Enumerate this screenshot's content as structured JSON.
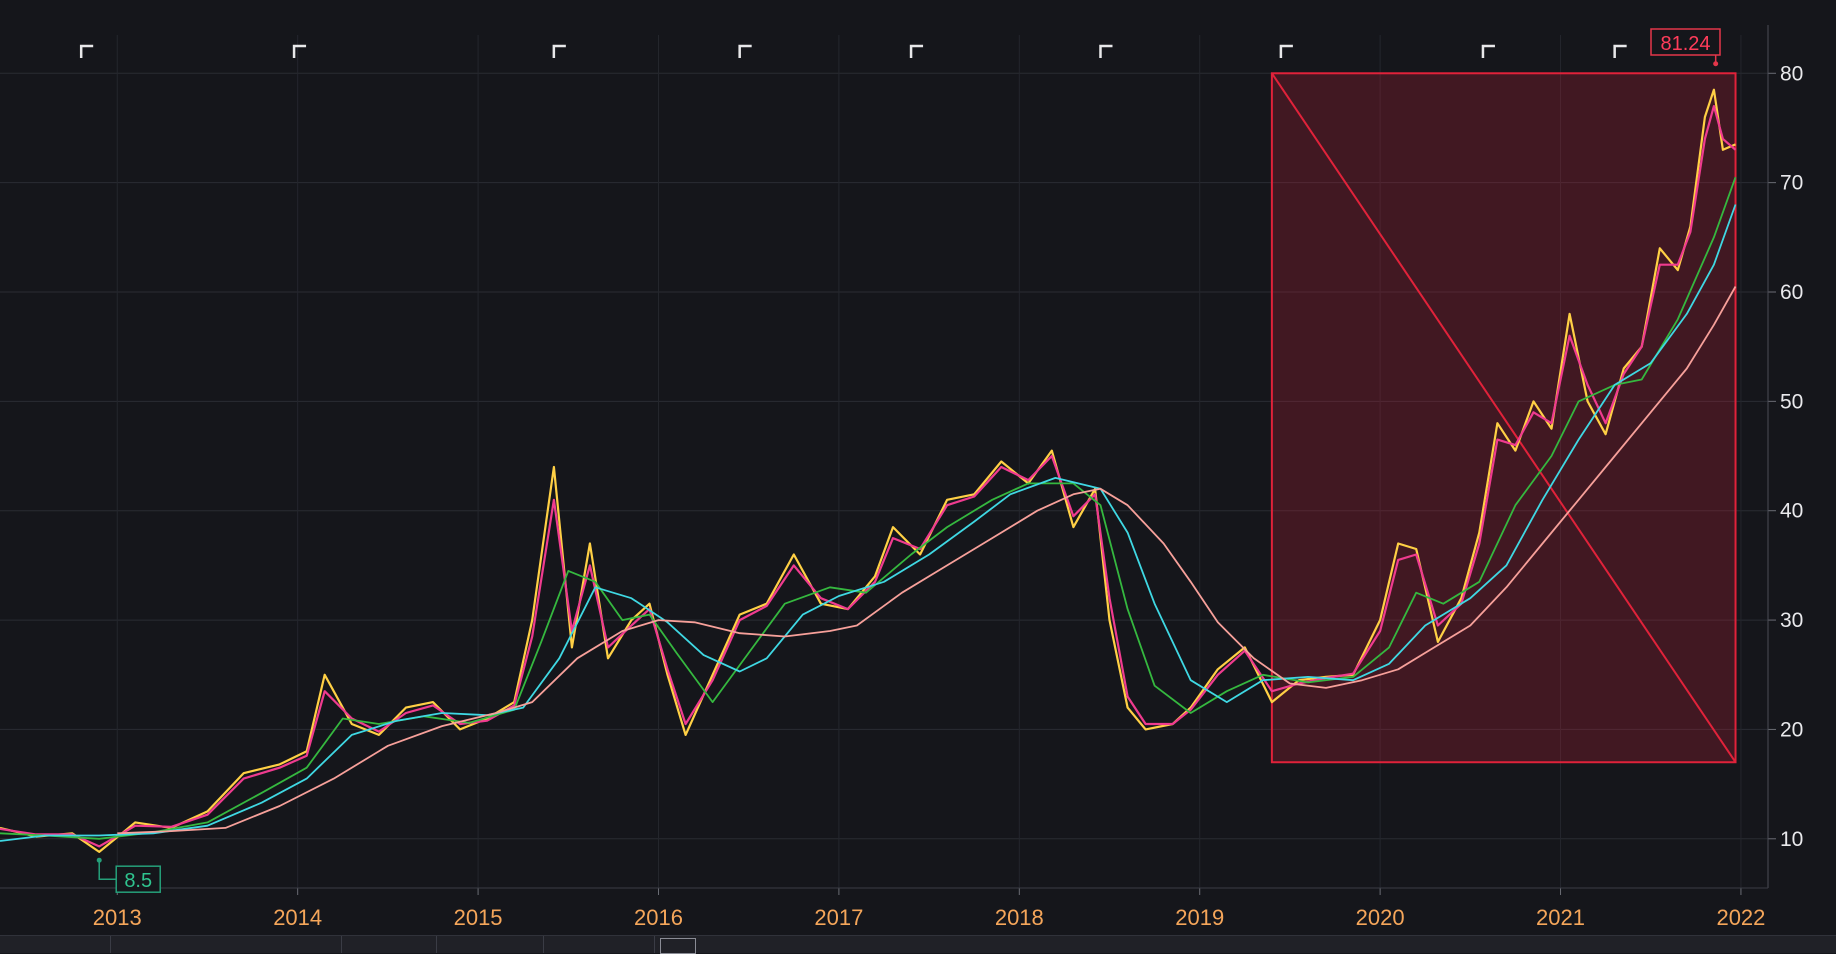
{
  "chart_data": {
    "type": "line",
    "title": "",
    "xlabel": "",
    "ylabel": "",
    "x_ticks": [
      "2013",
      "2014",
      "2015",
      "2016",
      "2017",
      "2018",
      "2019",
      "2020",
      "2021",
      "2022"
    ],
    "y_ticks": [
      10,
      20,
      30,
      40,
      50,
      60,
      70,
      80
    ],
    "ylim": [
      5.5,
      83.5
    ],
    "xlim": [
      2012.35,
      2022.15
    ],
    "grid": true,
    "y_axis_side": "right",
    "series": [
      {
        "name": "",
        "color": "#ffd045",
        "points": [
          [
            2012.35,
            11.0
          ],
          [
            2012.55,
            10.2
          ],
          [
            2012.75,
            10.5
          ],
          [
            2012.9,
            8.8
          ],
          [
            2013.1,
            11.5
          ],
          [
            2013.3,
            11.0
          ],
          [
            2013.5,
            12.5
          ],
          [
            2013.7,
            16.0
          ],
          [
            2013.9,
            16.8
          ],
          [
            2014.05,
            18.0
          ],
          [
            2014.15,
            25.0
          ],
          [
            2014.3,
            20.5
          ],
          [
            2014.45,
            19.5
          ],
          [
            2014.6,
            22.0
          ],
          [
            2014.75,
            22.5
          ],
          [
            2014.9,
            20.0
          ],
          [
            2015.05,
            21.0
          ],
          [
            2015.2,
            22.5
          ],
          [
            2015.3,
            30.0
          ],
          [
            2015.42,
            44.0
          ],
          [
            2015.52,
            27.5
          ],
          [
            2015.62,
            37.0
          ],
          [
            2015.72,
            26.5
          ],
          [
            2015.85,
            30.0
          ],
          [
            2015.95,
            31.5
          ],
          [
            2016.05,
            25.0
          ],
          [
            2016.15,
            19.5
          ],
          [
            2016.3,
            25.0
          ],
          [
            2016.45,
            30.5
          ],
          [
            2016.6,
            31.5
          ],
          [
            2016.75,
            36.0
          ],
          [
            2016.9,
            31.5
          ],
          [
            2017.05,
            31.0
          ],
          [
            2017.2,
            34.0
          ],
          [
            2017.3,
            38.5
          ],
          [
            2017.45,
            36.0
          ],
          [
            2017.6,
            41.0
          ],
          [
            2017.75,
            41.5
          ],
          [
            2017.9,
            44.5
          ],
          [
            2018.05,
            42.5
          ],
          [
            2018.18,
            45.5
          ],
          [
            2018.3,
            38.5
          ],
          [
            2018.42,
            42.0
          ],
          [
            2018.5,
            30.0
          ],
          [
            2018.6,
            22.0
          ],
          [
            2018.7,
            20.0
          ],
          [
            2018.85,
            20.5
          ],
          [
            2018.95,
            22.0
          ],
          [
            2019.1,
            25.5
          ],
          [
            2019.25,
            27.5
          ],
          [
            2019.4,
            22.5
          ],
          [
            2019.55,
            24.5
          ],
          [
            2019.7,
            24.8
          ],
          [
            2019.85,
            25.0
          ],
          [
            2020.0,
            30.0
          ],
          [
            2020.1,
            37.0
          ],
          [
            2020.2,
            36.5
          ],
          [
            2020.32,
            28.0
          ],
          [
            2020.45,
            32.0
          ],
          [
            2020.55,
            38.0
          ],
          [
            2020.65,
            48.0
          ],
          [
            2020.75,
            45.5
          ],
          [
            2020.85,
            50.0
          ],
          [
            2020.95,
            47.5
          ],
          [
            2021.05,
            58.0
          ],
          [
            2021.15,
            50.0
          ],
          [
            2021.25,
            47.0
          ],
          [
            2021.35,
            53.0
          ],
          [
            2021.45,
            55.0
          ],
          [
            2021.55,
            64.0
          ],
          [
            2021.65,
            62.0
          ],
          [
            2021.72,
            66.0
          ],
          [
            2021.8,
            76.0
          ],
          [
            2021.85,
            78.5
          ],
          [
            2021.9,
            73.0
          ],
          [
            2021.97,
            73.5
          ]
        ]
      },
      {
        "name": "",
        "color": "#ef3b8f",
        "points": [
          [
            2012.35,
            10.9
          ],
          [
            2012.55,
            10.4
          ],
          [
            2012.75,
            10.4
          ],
          [
            2012.9,
            9.3
          ],
          [
            2013.1,
            11.2
          ],
          [
            2013.3,
            11.1
          ],
          [
            2013.5,
            12.2
          ],
          [
            2013.7,
            15.5
          ],
          [
            2013.9,
            16.5
          ],
          [
            2014.05,
            17.6
          ],
          [
            2014.15,
            23.5
          ],
          [
            2014.3,
            21.0
          ],
          [
            2014.45,
            19.8
          ],
          [
            2014.6,
            21.5
          ],
          [
            2014.75,
            22.2
          ],
          [
            2014.9,
            20.5
          ],
          [
            2015.05,
            20.8
          ],
          [
            2015.2,
            22.2
          ],
          [
            2015.3,
            28.5
          ],
          [
            2015.42,
            41.0
          ],
          [
            2015.52,
            29.0
          ],
          [
            2015.62,
            35.0
          ],
          [
            2015.72,
            27.5
          ],
          [
            2015.85,
            29.5
          ],
          [
            2015.95,
            31.0
          ],
          [
            2016.05,
            25.5
          ],
          [
            2016.15,
            20.5
          ],
          [
            2016.3,
            24.5
          ],
          [
            2016.45,
            30.0
          ],
          [
            2016.6,
            31.3
          ],
          [
            2016.75,
            35.0
          ],
          [
            2016.9,
            32.0
          ],
          [
            2017.05,
            31.0
          ],
          [
            2017.2,
            33.5
          ],
          [
            2017.3,
            37.5
          ],
          [
            2017.45,
            36.5
          ],
          [
            2017.6,
            40.5
          ],
          [
            2017.75,
            41.3
          ],
          [
            2017.9,
            44.0
          ],
          [
            2018.05,
            42.8
          ],
          [
            2018.18,
            45.0
          ],
          [
            2018.3,
            39.5
          ],
          [
            2018.42,
            41.5
          ],
          [
            2018.5,
            32.0
          ],
          [
            2018.6,
            23.0
          ],
          [
            2018.7,
            20.5
          ],
          [
            2018.85,
            20.5
          ],
          [
            2018.95,
            21.8
          ],
          [
            2019.1,
            25.0
          ],
          [
            2019.25,
            27.2
          ],
          [
            2019.4,
            23.5
          ],
          [
            2019.55,
            24.2
          ],
          [
            2019.7,
            24.7
          ],
          [
            2019.85,
            25.1
          ],
          [
            2020.0,
            29.0
          ],
          [
            2020.1,
            35.5
          ],
          [
            2020.2,
            36.0
          ],
          [
            2020.32,
            29.5
          ],
          [
            2020.45,
            31.5
          ],
          [
            2020.55,
            37.0
          ],
          [
            2020.65,
            46.5
          ],
          [
            2020.75,
            46.0
          ],
          [
            2020.85,
            49.0
          ],
          [
            2020.95,
            48.0
          ],
          [
            2021.05,
            56.0
          ],
          [
            2021.15,
            51.5
          ],
          [
            2021.25,
            48.0
          ],
          [
            2021.35,
            52.5
          ],
          [
            2021.45,
            55.0
          ],
          [
            2021.55,
            62.5
          ],
          [
            2021.65,
            62.5
          ],
          [
            2021.72,
            65.5
          ],
          [
            2021.8,
            74.0
          ],
          [
            2021.85,
            77.0
          ],
          [
            2021.9,
            74.0
          ],
          [
            2021.97,
            73.0
          ]
        ]
      },
      {
        "name": "",
        "color": "#35b83f",
        "points": [
          [
            2012.35,
            10.5
          ],
          [
            2012.6,
            10.3
          ],
          [
            2012.9,
            10.0
          ],
          [
            2013.2,
            10.6
          ],
          [
            2013.5,
            11.5
          ],
          [
            2013.8,
            14.2
          ],
          [
            2014.05,
            16.5
          ],
          [
            2014.25,
            21.0
          ],
          [
            2014.45,
            20.5
          ],
          [
            2014.7,
            21.2
          ],
          [
            2014.95,
            20.6
          ],
          [
            2015.2,
            21.8
          ],
          [
            2015.35,
            28.0
          ],
          [
            2015.5,
            34.5
          ],
          [
            2015.65,
            33.5
          ],
          [
            2015.8,
            30.0
          ],
          [
            2015.95,
            30.5
          ],
          [
            2016.1,
            27.0
          ],
          [
            2016.3,
            22.5
          ],
          [
            2016.5,
            27.0
          ],
          [
            2016.7,
            31.5
          ],
          [
            2016.95,
            33.0
          ],
          [
            2017.15,
            32.5
          ],
          [
            2017.4,
            36.0
          ],
          [
            2017.6,
            38.5
          ],
          [
            2017.85,
            41.0
          ],
          [
            2018.05,
            42.5
          ],
          [
            2018.3,
            42.5
          ],
          [
            2018.45,
            40.5
          ],
          [
            2018.6,
            31.0
          ],
          [
            2018.75,
            24.0
          ],
          [
            2018.95,
            21.5
          ],
          [
            2019.15,
            23.5
          ],
          [
            2019.35,
            25.0
          ],
          [
            2019.6,
            24.3
          ],
          [
            2019.85,
            24.8
          ],
          [
            2020.05,
            27.5
          ],
          [
            2020.2,
            32.5
          ],
          [
            2020.35,
            31.5
          ],
          [
            2020.55,
            33.5
          ],
          [
            2020.75,
            40.5
          ],
          [
            2020.95,
            45.0
          ],
          [
            2021.1,
            50.0
          ],
          [
            2021.3,
            51.5
          ],
          [
            2021.45,
            52.0
          ],
          [
            2021.65,
            57.5
          ],
          [
            2021.85,
            65.0
          ],
          [
            2021.97,
            70.5
          ]
        ]
      },
      {
        "name": "",
        "color": "#3fd8e3",
        "points": [
          [
            2012.35,
            9.8
          ],
          [
            2012.6,
            10.3
          ],
          [
            2012.9,
            10.3
          ],
          [
            2013.2,
            10.5
          ],
          [
            2013.5,
            11.2
          ],
          [
            2013.8,
            13.3
          ],
          [
            2014.05,
            15.5
          ],
          [
            2014.3,
            19.5
          ],
          [
            2014.55,
            20.8
          ],
          [
            2014.8,
            21.5
          ],
          [
            2015.05,
            21.3
          ],
          [
            2015.25,
            22.0
          ],
          [
            2015.45,
            26.5
          ],
          [
            2015.65,
            33.0
          ],
          [
            2015.85,
            32.0
          ],
          [
            2016.05,
            29.8
          ],
          [
            2016.25,
            26.8
          ],
          [
            2016.45,
            25.3
          ],
          [
            2016.6,
            26.5
          ],
          [
            2016.8,
            30.5
          ],
          [
            2017.0,
            32.2
          ],
          [
            2017.25,
            33.5
          ],
          [
            2017.5,
            36.0
          ],
          [
            2017.75,
            39.0
          ],
          [
            2017.95,
            41.5
          ],
          [
            2018.2,
            43.0
          ],
          [
            2018.45,
            42.0
          ],
          [
            2018.6,
            38.0
          ],
          [
            2018.75,
            31.5
          ],
          [
            2018.95,
            24.5
          ],
          [
            2019.15,
            22.5
          ],
          [
            2019.35,
            24.5
          ],
          [
            2019.6,
            24.8
          ],
          [
            2019.85,
            24.5
          ],
          [
            2020.05,
            26.0
          ],
          [
            2020.25,
            29.5
          ],
          [
            2020.5,
            32.0
          ],
          [
            2020.7,
            35.0
          ],
          [
            2020.9,
            41.0
          ],
          [
            2021.1,
            46.5
          ],
          [
            2021.3,
            51.5
          ],
          [
            2021.5,
            53.5
          ],
          [
            2021.7,
            58.0
          ],
          [
            2021.85,
            62.5
          ],
          [
            2021.97,
            68.0
          ]
        ]
      },
      {
        "name": "",
        "color": "#f7a09a",
        "points": [
          [
            2013.0,
            10.5
          ],
          [
            2013.3,
            10.7
          ],
          [
            2013.6,
            11.0
          ],
          [
            2013.9,
            13.0
          ],
          [
            2014.2,
            15.5
          ],
          [
            2014.5,
            18.5
          ],
          [
            2014.8,
            20.3
          ],
          [
            2015.1,
            21.5
          ],
          [
            2015.3,
            22.5
          ],
          [
            2015.55,
            26.5
          ],
          [
            2015.8,
            29.0
          ],
          [
            2016.0,
            30.0
          ],
          [
            2016.2,
            29.8
          ],
          [
            2016.45,
            28.8
          ],
          [
            2016.7,
            28.5
          ],
          [
            2016.95,
            29.0
          ],
          [
            2017.1,
            29.5
          ],
          [
            2017.35,
            32.5
          ],
          [
            2017.6,
            35.0
          ],
          [
            2017.85,
            37.5
          ],
          [
            2018.1,
            40.0
          ],
          [
            2018.3,
            41.5
          ],
          [
            2018.45,
            42.0
          ],
          [
            2018.6,
            40.5
          ],
          [
            2018.8,
            37.0
          ],
          [
            2018.95,
            33.5
          ],
          [
            2019.1,
            29.8
          ],
          [
            2019.3,
            26.5
          ],
          [
            2019.5,
            24.2
          ],
          [
            2019.7,
            23.8
          ],
          [
            2019.9,
            24.5
          ],
          [
            2020.1,
            25.5
          ],
          [
            2020.3,
            27.5
          ],
          [
            2020.5,
            29.5
          ],
          [
            2020.7,
            33.0
          ],
          [
            2020.9,
            37.0
          ],
          [
            2021.1,
            41.0
          ],
          [
            2021.3,
            45.0
          ],
          [
            2021.5,
            49.0
          ],
          [
            2021.7,
            53.0
          ],
          [
            2021.85,
            57.0
          ],
          [
            2021.97,
            60.5
          ]
        ]
      }
    ],
    "annotations": {
      "max_label": "81.24",
      "max_point": [
        2021.86,
        81.24
      ],
      "min_label": "8.5",
      "min_point": [
        2012.9,
        8.5
      ],
      "highlight_box": {
        "x0": 2019.4,
        "x1": 2021.97,
        "y0": 17.0,
        "y1": 80.0,
        "color": "#e0223a"
      },
      "period_markers_x": [
        2012.8,
        2013.98,
        2015.42,
        2016.45,
        2017.4,
        2018.45,
        2019.45,
        2020.57,
        2021.3
      ]
    }
  }
}
